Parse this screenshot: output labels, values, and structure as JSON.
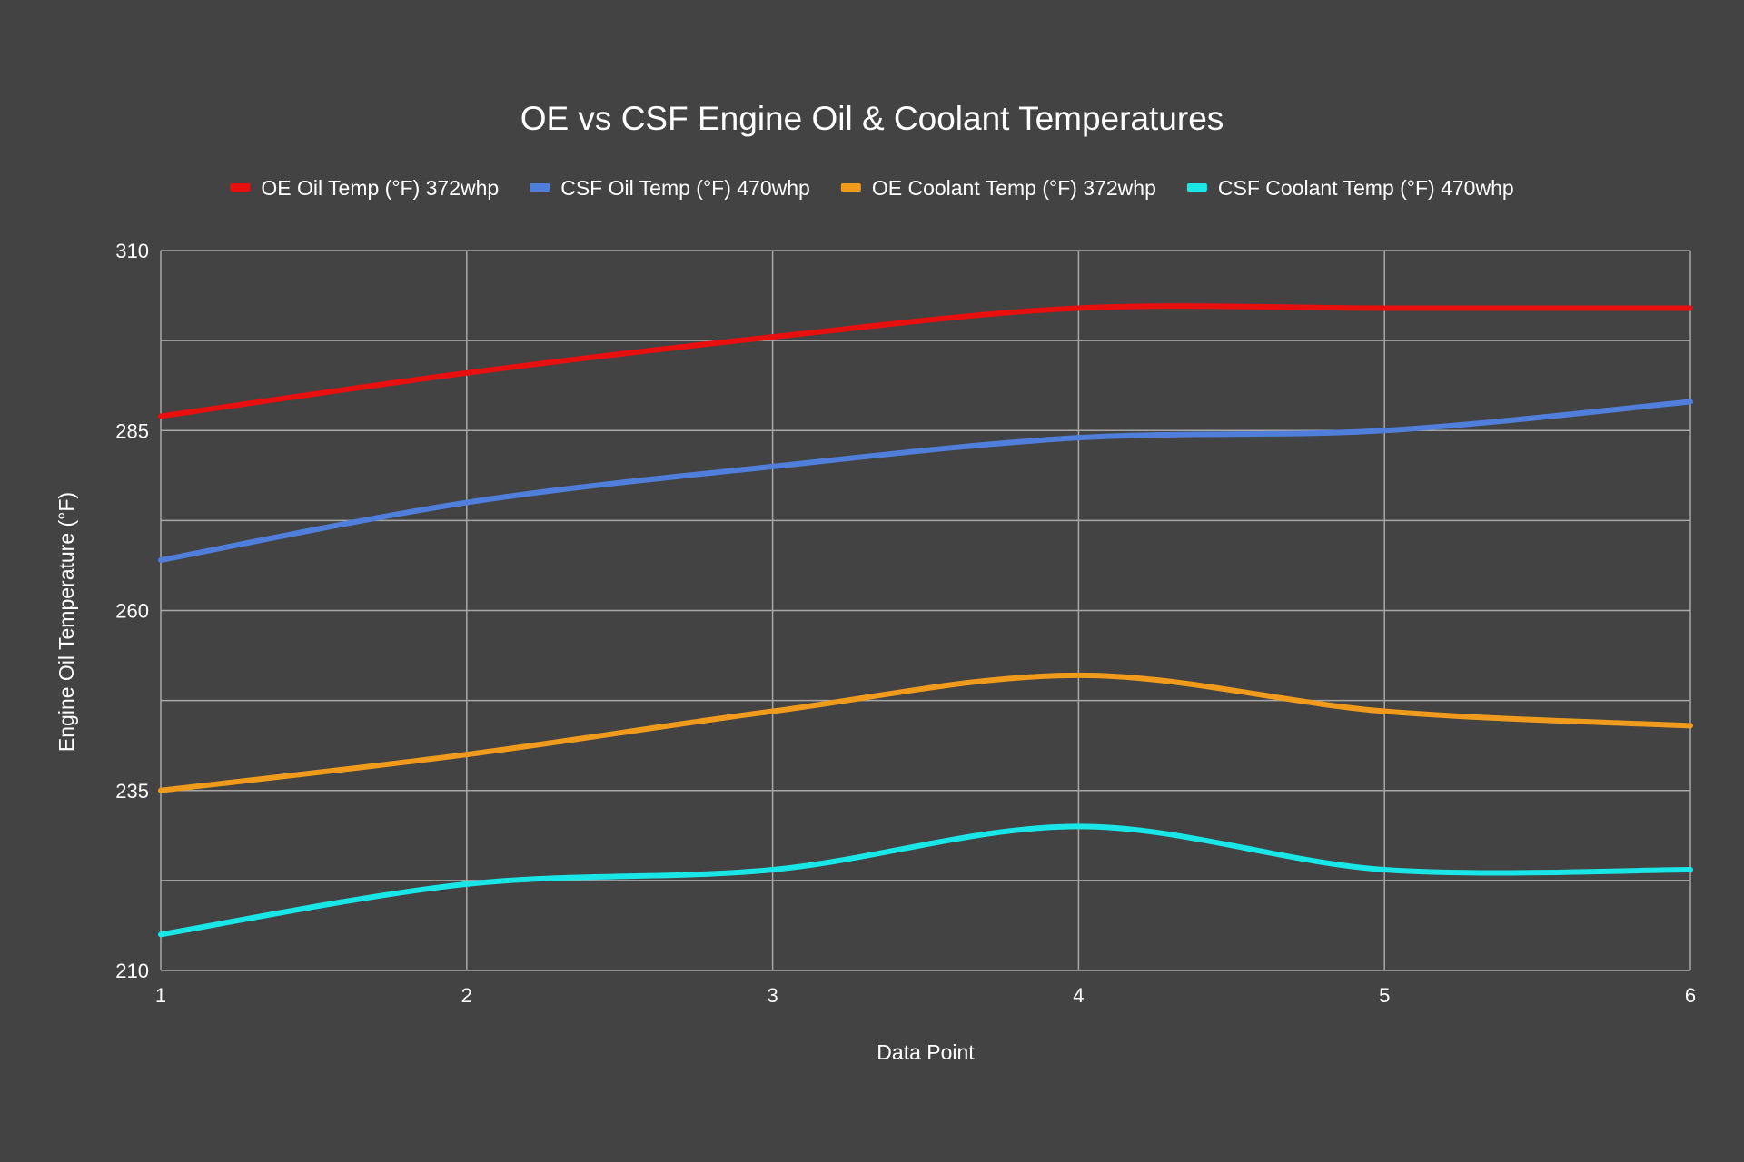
{
  "chart_data": {
    "type": "line",
    "title": "OE vs CSF Engine Oil & Coolant Temperatures",
    "xlabel": "Data Point",
    "ylabel": "Engine Oil Temperature (°F)",
    "x": [
      1,
      2,
      3,
      4,
      5,
      6
    ],
    "x_tick_labels": [
      "1",
      "2",
      "3",
      "4",
      "5",
      "6"
    ],
    "ylim": [
      210,
      310
    ],
    "y_tick_labels": [
      "210",
      "235",
      "260",
      "285",
      "310"
    ],
    "y_gridlines": [
      210,
      222.5,
      235,
      247.5,
      260,
      272.5,
      285,
      297.5,
      310
    ],
    "grid": true,
    "smooth": true,
    "legend_position": "top",
    "series": [
      {
        "name": "OE Oil Temp (°F) 372whp",
        "color": "#e80f0f",
        "values": [
          287,
          293,
          298,
          302,
          302,
          302
        ]
      },
      {
        "name": "CSF Oil Temp (°F) 470whp",
        "color": "#4f7fdb",
        "values": [
          267,
          275,
          280,
          284,
          285,
          289
        ]
      },
      {
        "name": "OE Coolant Temp (°F) 372whp",
        "color": "#f09b1c",
        "values": [
          235,
          240,
          246,
          251,
          246,
          244
        ]
      },
      {
        "name": "CSF Coolant Temp (°F) 470whp",
        "color": "#19e6e6",
        "values": [
          215,
          222,
          224,
          230,
          224,
          224
        ]
      }
    ]
  }
}
